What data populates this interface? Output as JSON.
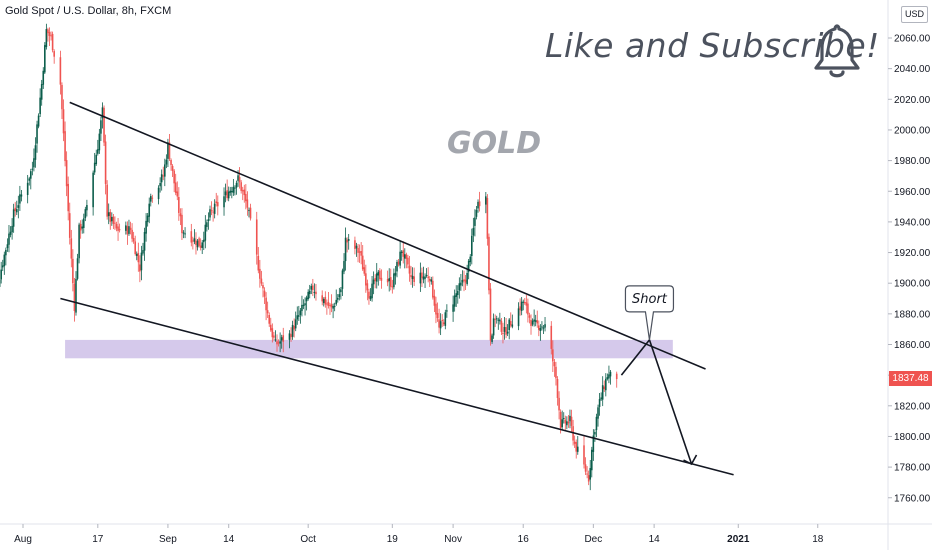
{
  "header": {
    "symbol_title": "Gold Spot / U.S. Dollar, 8h, FXCM",
    "currency": "USD"
  },
  "overlay": {
    "watermark": "GOLD",
    "call_to_action": "Like and Subscribe!",
    "callout": "Short",
    "bell_icon": "bell-icon"
  },
  "colors": {
    "up": "#26a69a",
    "up_dark": "#0b5d4b",
    "down": "#ef5350",
    "zone": "#b39ddb",
    "last_price": "#ef5350",
    "axis_text": "#131722",
    "gridline": "#f0f3fa"
  },
  "chart_data": {
    "type": "candlestick",
    "title": "Gold Spot / U.S. Dollar, 8h, FXCM",
    "ylim": [
      1740,
      2080
    ],
    "y_ticks": [
      "1760.00",
      "1780.00",
      "1800.00",
      "1820.00",
      "1840.00",
      "1860.00",
      "1880.00",
      "1900.00",
      "1920.00",
      "1940.00",
      "1960.00",
      "1980.00",
      "2000.00",
      "2020.00",
      "2040.00",
      "2060.00"
    ],
    "x_ticks": [
      "Aug",
      "17",
      "Sep",
      "14",
      "Oct",
      "19",
      "Nov",
      "16",
      "Dec",
      "14",
      "2021",
      "18"
    ],
    "last_price": "1837.48",
    "close_path": [
      [
        "2020-07-24",
        1860
      ],
      [
        "2020-07-27",
        1905
      ],
      [
        "2020-07-30",
        1945
      ],
      [
        "2020-08-03",
        1975
      ],
      [
        "2020-08-05",
        2030
      ],
      [
        "2020-08-06",
        2065
      ],
      [
        "2020-08-07",
        2060
      ],
      [
        "2020-08-09",
        2030
      ],
      [
        "2020-08-11",
        1930
      ],
      [
        "2020-08-12",
        1885
      ],
      [
        "2020-08-13",
        1935
      ],
      [
        "2020-08-14",
        1940
      ],
      [
        "2020-08-17",
        1990
      ],
      [
        "2020-08-18",
        2012
      ],
      [
        "2020-08-19",
        1945
      ],
      [
        "2020-08-21",
        1935
      ],
      [
        "2020-08-24",
        1935
      ],
      [
        "2020-08-26",
        1910
      ],
      [
        "2020-08-28",
        1955
      ],
      [
        "2020-08-31",
        1970
      ],
      [
        "2020-09-01",
        1990
      ],
      [
        "2020-09-04",
        1935
      ],
      [
        "2020-09-08",
        1925
      ],
      [
        "2020-09-10",
        1945
      ],
      [
        "2020-09-14",
        1960
      ],
      [
        "2020-09-16",
        1968
      ],
      [
        "2020-09-18",
        1950
      ],
      [
        "2020-09-21",
        1900
      ],
      [
        "2020-09-23",
        1870
      ],
      [
        "2020-09-24",
        1860
      ],
      [
        "2020-09-27",
        1866
      ],
      [
        "2020-09-30",
        1885
      ],
      [
        "2020-10-02",
        1897
      ],
      [
        "2020-10-06",
        1883
      ],
      [
        "2020-10-08",
        1895
      ],
      [
        "2020-10-09",
        1928
      ],
      [
        "2020-10-12",
        1920
      ],
      [
        "2020-10-14",
        1893
      ],
      [
        "2020-10-16",
        1905
      ],
      [
        "2020-10-19",
        1900
      ],
      [
        "2020-10-21",
        1922
      ],
      [
        "2020-10-23",
        1903
      ],
      [
        "2020-10-27",
        1905
      ],
      [
        "2020-10-29",
        1870
      ],
      [
        "2020-11-02",
        1895
      ],
      [
        "2020-11-04",
        1905
      ],
      [
        "2020-11-06",
        1950
      ],
      [
        "2020-11-08",
        1960
      ],
      [
        "2020-11-09",
        1865
      ],
      [
        "2020-11-10",
        1878
      ],
      [
        "2020-11-12",
        1868
      ],
      [
        "2020-11-16",
        1888
      ],
      [
        "2020-11-18",
        1873
      ],
      [
        "2020-11-21",
        1872
      ],
      [
        "2020-11-23",
        1838
      ],
      [
        "2020-11-24",
        1808
      ],
      [
        "2020-11-26",
        1810
      ],
      [
        "2020-11-27",
        1795
      ],
      [
        "2020-11-30",
        1773
      ],
      [
        "2020-12-01",
        1800
      ],
      [
        "2020-12-02",
        1818
      ],
      [
        "2020-12-03",
        1830
      ],
      [
        "2020-12-04",
        1840
      ],
      [
        "2020-12-06",
        1837.48
      ]
    ],
    "lines": [
      {
        "name": "upper-trendline",
        "from": [
          "2020-08-11",
          2018
        ],
        "to": [
          "2020-12-25",
          1844
        ]
      },
      {
        "name": "lower-trendline",
        "from": [
          "2020-08-09",
          1890
        ],
        "to": [
          "2020-12-31",
          1775
        ]
      },
      {
        "name": "projection-up",
        "from": [
          "2020-12-07",
          1840
        ],
        "to": [
          "2020-12-13",
          1863
        ]
      },
      {
        "name": "projection-down",
        "from": [
          "2020-12-13",
          1863
        ],
        "to": [
          "2020-12-22",
          1782
        ]
      }
    ],
    "zones": [
      {
        "name": "support-resistance-zone",
        "from": "2020-08-10",
        "to": "2020-12-18",
        "y_min": 1851,
        "y_max": 1863
      }
    ]
  }
}
